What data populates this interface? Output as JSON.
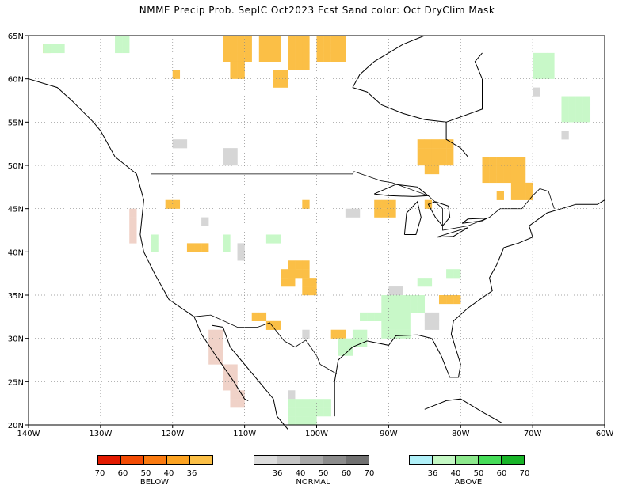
{
  "title": "NMME Precip Prob. SepIC  Oct2023 Fcst  Sand color: Oct DryClim Mask",
  "map": {
    "lon_range": [
      -140,
      -60
    ],
    "lat_range": [
      20,
      65
    ],
    "lon_ticks": [
      "140W",
      "130W",
      "120W",
      "110W",
      "100W",
      "90W",
      "80W",
      "70W",
      "60W"
    ],
    "lat_ticks": [
      "20N",
      "25N",
      "30N",
      "35N",
      "40N",
      "45N",
      "50N",
      "55N",
      "60N",
      "65N"
    ],
    "grid": "dotted",
    "colors": {
      "below36": "#fbbf46",
      "normal36": "#d6d6d6",
      "normal40": "#b4b4b4",
      "above36": "#c8f8c8",
      "above40": "#98ec98",
      "sand": "#f0d2c8"
    }
  },
  "legends": {
    "below": {
      "label": "BELOW",
      "values": [
        "70",
        "60",
        "50",
        "40",
        "36"
      ],
      "colors": [
        "#e21a00",
        "#f24b04",
        "#fa7a10",
        "#fca322",
        "#fbbf46"
      ]
    },
    "normal": {
      "label": "NORMAL",
      "values": [
        "36",
        "40",
        "50",
        "60",
        "70"
      ],
      "colors": [
        "#dcdcdc",
        "#c4c4c4",
        "#a8a8a8",
        "#8c8c8c",
        "#707070"
      ]
    },
    "above": {
      "label": "ABOVE",
      "values": [
        "36",
        "40",
        "50",
        "60",
        "70"
      ],
      "colors": [
        "#b0f0f8",
        "#c4f8c4",
        "#8ce88c",
        "#46dc58",
        "#18b428"
      ]
    }
  }
}
